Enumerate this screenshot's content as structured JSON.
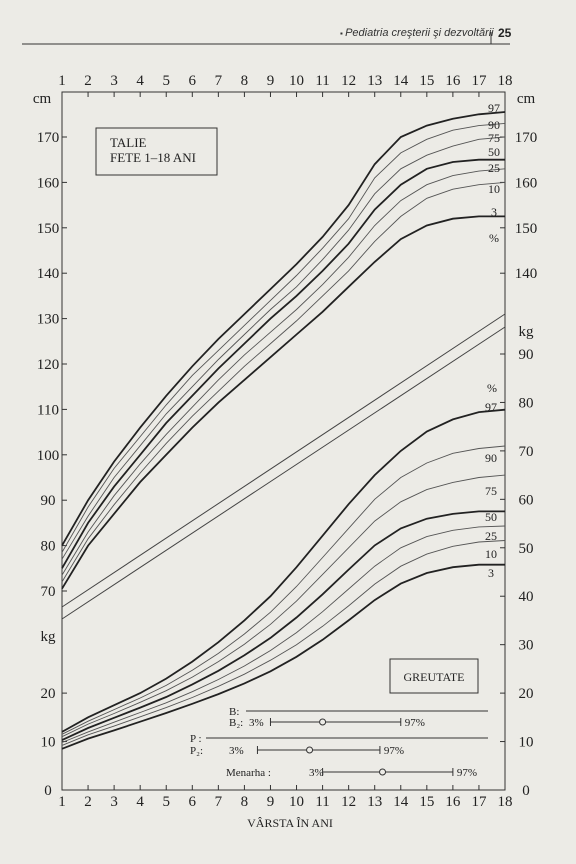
{
  "header": {
    "section_title": "Pediatria creşterii şi dezvoltării",
    "page_number": "25"
  },
  "chart_data": {
    "type": "line",
    "title": "TALIE FETE 1–18 ANI",
    "title_lines": [
      "TALIE",
      "FETE 1–18 ANI"
    ],
    "weight_label": "GREUTATE",
    "xlabel": "VÂRSTA ÎN ANI",
    "x": [
      1,
      2,
      3,
      4,
      5,
      6,
      7,
      8,
      9,
      10,
      11,
      12,
      13,
      14,
      15,
      16,
      17,
      18
    ],
    "xlim": [
      1,
      18
    ],
    "height_axis": {
      "unit": "cm",
      "ylim": [
        68,
        178
      ],
      "ticks_left": [
        70,
        80,
        90,
        100,
        110,
        120,
        130,
        140,
        150,
        160,
        170
      ],
      "ticks_right": [
        140,
        150,
        160,
        170
      ]
    },
    "weight_axis_right": {
      "unit": "kg",
      "ylim": [
        0,
        98
      ],
      "ticks": [
        0,
        10,
        20,
        30,
        40,
        50,
        60,
        70,
        80,
        90
      ]
    },
    "weight_axis_left": {
      "unit": "kg",
      "ticks": [
        0,
        10,
        20
      ]
    },
    "percent_symbol": "%",
    "height_series": [
      {
        "percentile": "97",
        "values": [
          80,
          90,
          98.5,
          106,
          113,
          119.5,
          125.5,
          131,
          136.5,
          142,
          148,
          155,
          164,
          170,
          172.5,
          174,
          175,
          175.5
        ]
      },
      {
        "percentile": "90",
        "values": [
          78.5,
          88.5,
          97,
          104,
          111,
          117.5,
          123,
          128.5,
          134,
          139.5,
          145.5,
          152,
          161,
          166.5,
          169.5,
          171.5,
          172.5,
          173
        ]
      },
      {
        "percentile": "75",
        "values": [
          77,
          86.5,
          95,
          102,
          109,
          115,
          121,
          126.5,
          132,
          137,
          143,
          149.5,
          157.5,
          163,
          166,
          168,
          169.5,
          170
        ]
      },
      {
        "percentile": "50",
        "values": [
          75,
          85,
          93,
          100,
          107,
          113,
          119,
          124.5,
          130,
          135,
          140.5,
          146.5,
          154,
          159.5,
          163,
          164.5,
          165,
          165
        ]
      },
      {
        "percentile": "25",
        "values": [
          73.5,
          83,
          91,
          98,
          104.5,
          110.5,
          116.5,
          122,
          127,
          132,
          137.5,
          143.5,
          150.5,
          156,
          159.5,
          161.5,
          162.5,
          163
        ]
      },
      {
        "percentile": "10",
        "values": [
          72,
          81.5,
          89,
          96,
          102.5,
          108.5,
          114,
          119.5,
          124.5,
          129.5,
          135,
          140.5,
          147,
          152.5,
          156.5,
          158.5,
          159.5,
          160
        ]
      },
      {
        "percentile": "3",
        "values": [
          70.5,
          80,
          87,
          94,
          100,
          106,
          111.5,
          116.5,
          121.5,
          126.5,
          131.5,
          137,
          142.5,
          147.5,
          150.5,
          152,
          152.5,
          152.5
        ]
      }
    ],
    "weight_series": [
      {
        "percentile": "97",
        "values": [
          12,
          15,
          17.5,
          20,
          23,
          26.5,
          30.5,
          35,
          40,
          46,
          52.5,
          59,
          65,
          70,
          74,
          76.5,
          78,
          78.5
        ]
      },
      {
        "percentile": "90",
        "values": [
          11.5,
          14.2,
          16.6,
          19,
          21.6,
          24.7,
          28.2,
          32.2,
          36.7,
          42,
          48,
          54,
          60,
          64.5,
          67.5,
          69.5,
          70.5,
          71
        ]
      },
      {
        "percentile": "75",
        "values": [
          11,
          13.6,
          15.8,
          18.1,
          20.5,
          23.3,
          26.5,
          30.1,
          34.2,
          39,
          44.5,
          50,
          55.5,
          59.5,
          62,
          63.5,
          64.5,
          65
        ]
      },
      {
        "percentile": "50",
        "values": [
          10.3,
          12.8,
          14.9,
          17,
          19.2,
          21.8,
          24.6,
          27.8,
          31.4,
          35.6,
          40.4,
          45.5,
          50.5,
          54,
          56,
          57,
          57.5,
          57.5
        ]
      },
      {
        "percentile": "25",
        "values": [
          9.8,
          12,
          14,
          16,
          18,
          20.3,
          22.8,
          25.6,
          28.8,
          32.5,
          36.8,
          41.5,
          46.2,
          50,
          52.3,
          53.6,
          54.3,
          54.5
        ]
      },
      {
        "percentile": "10",
        "values": [
          9.2,
          11.4,
          13.2,
          15.1,
          17,
          19.1,
          21.4,
          23.9,
          26.8,
          30,
          33.8,
          38,
          42.5,
          46.2,
          48.7,
          50.3,
          51.2,
          51.5
        ]
      },
      {
        "percentile": "3",
        "values": [
          8.5,
          10.6,
          12.3,
          14.1,
          15.9,
          17.8,
          19.8,
          22,
          24.5,
          27.5,
          31,
          35,
          39.2,
          42.6,
          44.8,
          46,
          46.5,
          46.5
        ]
      }
    ],
    "milestones": [
      {
        "label": "B:",
        "range_text": "",
        "p3": null,
        "p50": null,
        "p97": null
      },
      {
        "label": "B₂:",
        "range_text": "3%",
        "end_text": "97%",
        "p3": 9,
        "p50": 11,
        "p97": 14
      },
      {
        "label": "P :",
        "range_text": "",
        "p3": null,
        "p50": null,
        "p97": null
      },
      {
        "label": "P₂:",
        "range_text": "3%",
        "end_text": "97%",
        "p3": 8.5,
        "p50": 10.5,
        "p97": 13.2
      },
      {
        "label": "Menarha :",
        "range_text": "3%",
        "end_text": "97%",
        "p3": 11,
        "p50": 13.3,
        "p97": 16
      }
    ]
  }
}
